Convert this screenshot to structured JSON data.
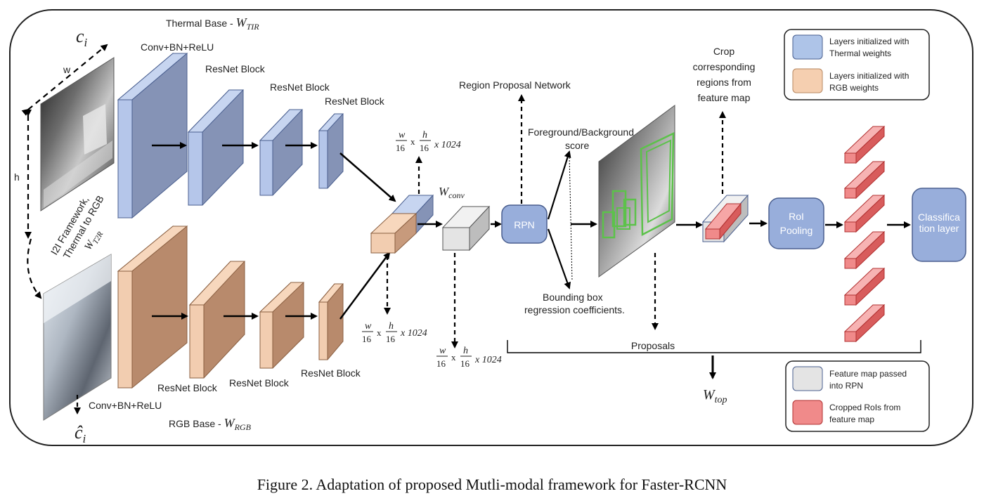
{
  "thermal_base": {
    "title": "Thermal Base - ",
    "weight": "W",
    "weight_sub": "TIR"
  },
  "rgb_base": {
    "title": "RGB Base - ",
    "weight": "W",
    "weight_sub": "RGB"
  },
  "input": {
    "c_label": "c",
    "c_sub": "i",
    "chat_label": "ĉ",
    "chat_sub": "i",
    "w_label": "w",
    "h_label": "h"
  },
  "i2i": {
    "line1": "I2I Framework,",
    "line2": "Thermal to RGB",
    "weight": "W",
    "weight_sub": "T2R"
  },
  "thermal_layers": {
    "conv": "Conv+BN+ReLU",
    "block1": "ResNet Block",
    "block2": "ResNet Block",
    "block3": "ResNet Block"
  },
  "rgb_layers": {
    "conv": "Conv+BN+ReLU",
    "block1": "ResNet Block",
    "block2": "ResNet Block",
    "block3": "ResNet Block"
  },
  "dims": {
    "w": "w",
    "h": "h",
    "den": "16",
    "x": "x",
    "ch": "x 1024"
  },
  "conv": {
    "weight": "W",
    "weight_sub": "conv"
  },
  "rpn": {
    "label": "RPN",
    "title": "Region Proposal Network",
    "fg_bg_1": "Foreground/Background",
    "fg_bg_2": "score",
    "bbox_1": "Bounding box",
    "bbox_2": "regression coefficients."
  },
  "crop": {
    "line1": "Crop",
    "line2": "corresponding",
    "line3": "regions from",
    "line4": "feature map"
  },
  "roi": {
    "line1": "RoI",
    "line2": "Pooling"
  },
  "classification": {
    "line1": "Classifica",
    "line2": "tion layer"
  },
  "proposals": {
    "label": "Proposals",
    "weight": "W",
    "weight_sub": "top"
  },
  "legend_top": [
    {
      "text1": "Layers initialized with",
      "text2": "Thermal weights",
      "color": "#aec4e8"
    },
    {
      "text1": "Layers initialized with",
      "text2": "RGB weights",
      "color": "#f5cfb0"
    }
  ],
  "legend_bottom": [
    {
      "text1": "Feature map passed",
      "text2": "into RPN",
      "color": "#e4e4e4"
    },
    {
      "text1": "Cropped RoIs from",
      "text2": "feature map",
      "color": "#f08a8a"
    }
  ],
  "caption": "Figure 2. Adaptation of proposed Mutli-modal framework for Faster-RCNN",
  "colors": {
    "thermal": "#aec4e8",
    "rgb": "#f5cfb0",
    "feature": "#e4e4e4",
    "roi": "#f08a8a",
    "box_blue": "#98aedb"
  }
}
